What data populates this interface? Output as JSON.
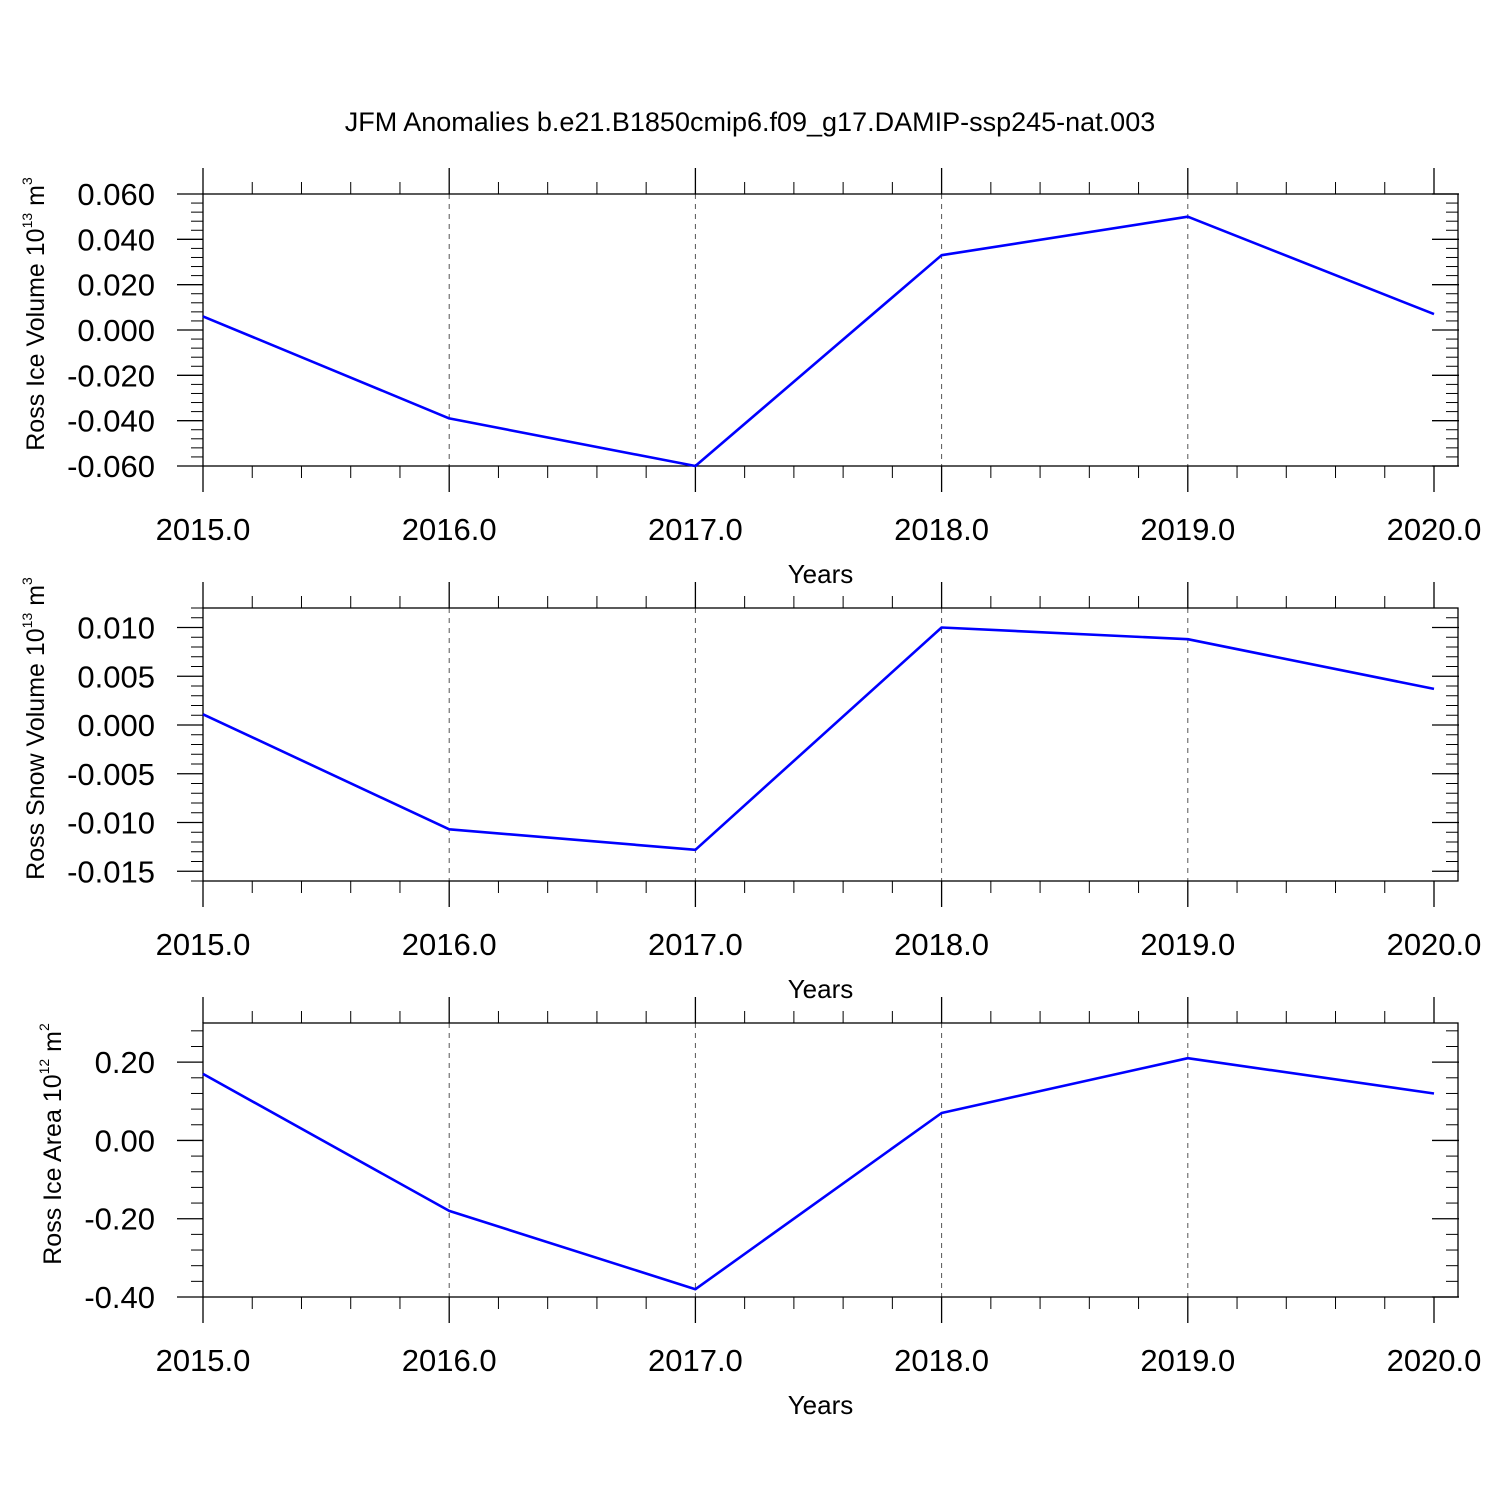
{
  "title": "JFM Anomalies b.e21.B1850cmip6.f09_g17.DAMIP-ssp245-nat.003",
  "colors": {
    "line": "#0000ff",
    "frame": "#000000",
    "grid": "#555555"
  },
  "chart_data": [
    {
      "type": "line",
      "x": [
        2015,
        2016,
        2017,
        2018,
        2019,
        2020
      ],
      "y": [
        0.006,
        -0.039,
        -0.06,
        0.033,
        0.05,
        0.007
      ],
      "xlim": [
        2015,
        2020
      ],
      "ylim": [
        -0.06,
        0.06
      ],
      "xticks": [
        2015,
        2016,
        2017,
        2018,
        2019,
        2020
      ],
      "xtick_labels": [
        "2015.0",
        "2016.0",
        "2017.0",
        "2018.0",
        "2019.0",
        "2020.0"
      ],
      "yticks": [
        -0.06,
        -0.04,
        -0.02,
        0.0,
        0.02,
        0.04,
        0.06
      ],
      "ytick_labels": [
        "-0.060",
        "-0.040",
        "-0.020",
        "0.000",
        "0.020",
        "0.040",
        "0.060"
      ],
      "xlabel": "Years",
      "ylabel": {
        "text": "Ross Ice Volume 10",
        "exp": "13",
        "unit": " m",
        "unit_exp": "3"
      },
      "grid": "vertical dashed"
    },
    {
      "type": "line",
      "x": [
        2015,
        2016,
        2017,
        2018,
        2019,
        2020
      ],
      "y": [
        0.0011,
        -0.0107,
        -0.0128,
        0.01,
        0.0088,
        0.0037
      ],
      "xlim": [
        2015,
        2020
      ],
      "ylim": [
        -0.016,
        0.012
      ],
      "xticks": [
        2015,
        2016,
        2017,
        2018,
        2019,
        2020
      ],
      "xtick_labels": [
        "2015.0",
        "2016.0",
        "2017.0",
        "2018.0",
        "2019.0",
        "2020.0"
      ],
      "yticks": [
        -0.015,
        -0.01,
        -0.005,
        0.0,
        0.005,
        0.01
      ],
      "ytick_labels": [
        "-0.015",
        "-0.010",
        "-0.005",
        "0.000",
        "0.005",
        "0.010"
      ],
      "xlabel": "Years",
      "ylabel": {
        "text": "Ross Snow Volume 10",
        "exp": "13",
        "unit": " m",
        "unit_exp": "3"
      },
      "grid": "vertical dashed"
    },
    {
      "type": "line",
      "x": [
        2015,
        2016,
        2017,
        2018,
        2019,
        2020
      ],
      "y": [
        0.17,
        -0.18,
        -0.38,
        0.07,
        0.21,
        0.12
      ],
      "xlim": [
        2015,
        2020
      ],
      "ylim": [
        -0.4,
        0.3
      ],
      "xticks": [
        2015,
        2016,
        2017,
        2018,
        2019,
        2020
      ],
      "xtick_labels": [
        "2015.0",
        "2016.0",
        "2017.0",
        "2018.0",
        "2019.0",
        "2020.0"
      ],
      "yticks": [
        -0.4,
        -0.2,
        0.0,
        0.2
      ],
      "ytick_labels": [
        "-0.40",
        "-0.20",
        "0.00",
        "0.20"
      ],
      "xlabel": "Years",
      "ylabel": {
        "text": "Ross Ice Area 10",
        "exp": "12",
        "unit": " m",
        "unit_exp": "2"
      },
      "grid": "vertical dashed"
    }
  ]
}
